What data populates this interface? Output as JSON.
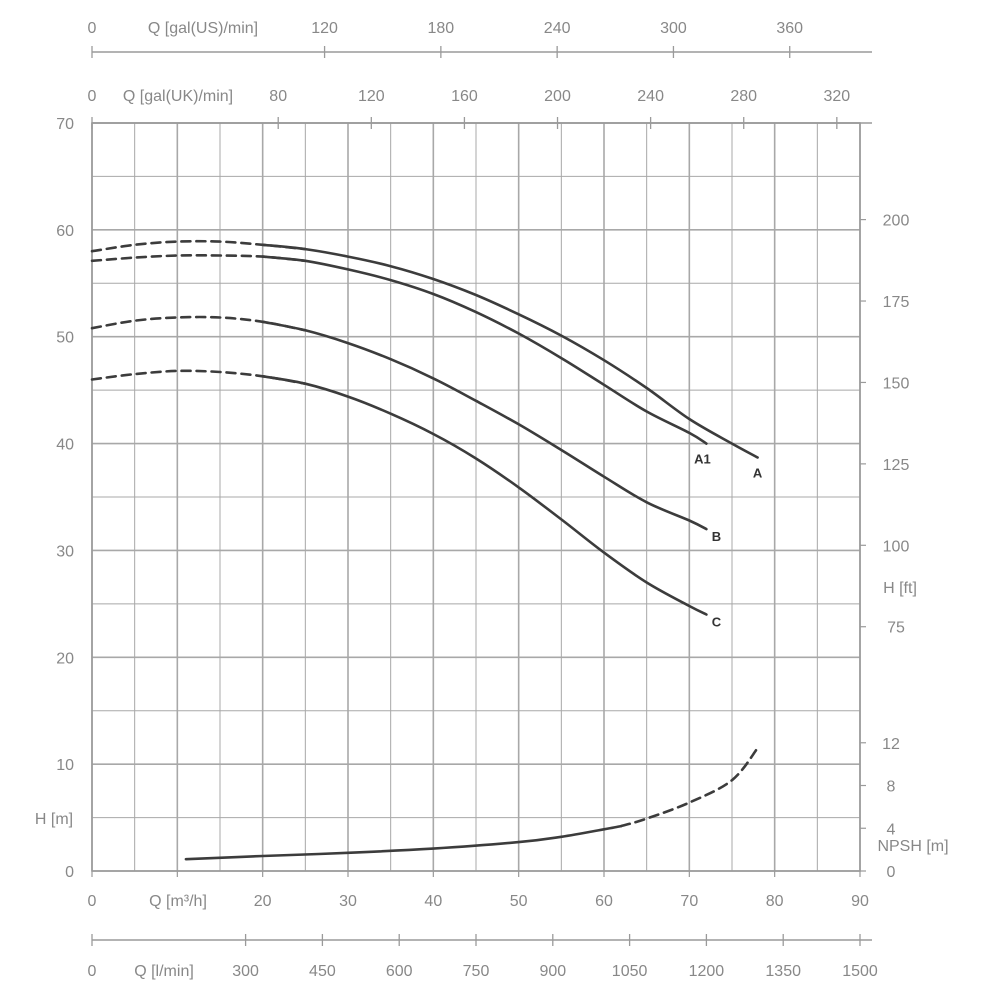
{
  "chart_data": {
    "type": "line",
    "title": "",
    "x_axis": {
      "label": "Q [m³/h]",
      "range": [
        0,
        90
      ],
      "ticks": [
        0,
        10,
        20,
        30,
        40,
        50,
        60,
        70,
        80,
        90
      ]
    },
    "y_axis_left": {
      "label": "H [m]",
      "range": [
        0,
        70
      ],
      "ticks": [
        0,
        10,
        20,
        30,
        40,
        50,
        60,
        70
      ]
    },
    "y_axis_right_head": {
      "label": "H [ft]",
      "ticks": [
        75,
        100,
        125,
        150,
        175,
        200
      ]
    },
    "y_axis_right_npsh": {
      "label": "NPSH [m]",
      "ticks": [
        0,
        4,
        8,
        12
      ]
    },
    "top_axis_us": {
      "label": "Q [gal(US)/min]",
      "ticks": [
        0,
        120,
        180,
        240,
        300,
        360
      ]
    },
    "top_axis_uk": {
      "label": "Q [gal(UK)/min]",
      "ticks": [
        0,
        80,
        120,
        160,
        200,
        240,
        280,
        320
      ]
    },
    "bottom_axis_lmin": {
      "label": "Q [l/min]",
      "ticks": [
        0,
        300,
        450,
        600,
        750,
        900,
        1050,
        1200,
        1350,
        1500
      ]
    },
    "grid": true,
    "series": [
      {
        "name": "A",
        "dashed_until_x": 24,
        "x": [
          0,
          5,
          10,
          15,
          20,
          25,
          30,
          35,
          40,
          45,
          50,
          55,
          60,
          65,
          70,
          75,
          78
        ],
        "y": [
          58.0,
          58.6,
          58.9,
          58.9,
          58.6,
          58.2,
          57.5,
          56.6,
          55.4,
          53.9,
          52.1,
          50.1,
          47.8,
          45.2,
          42.3,
          40.0,
          38.7
        ]
      },
      {
        "name": "A1",
        "dashed_until_x": 24,
        "x": [
          0,
          5,
          10,
          15,
          20,
          25,
          30,
          35,
          40,
          45,
          50,
          55,
          60,
          65,
          70,
          72
        ],
        "y": [
          57.1,
          57.4,
          57.6,
          57.6,
          57.5,
          57.1,
          56.3,
          55.3,
          54.0,
          52.3,
          50.3,
          48.0,
          45.5,
          43.0,
          41.0,
          40.0
        ]
      },
      {
        "name": "B",
        "dashed_until_x": 24,
        "x": [
          0,
          5,
          10,
          15,
          20,
          25,
          30,
          35,
          40,
          45,
          50,
          55,
          60,
          65,
          70,
          72
        ],
        "y": [
          50.8,
          51.5,
          51.8,
          51.8,
          51.4,
          50.6,
          49.4,
          47.9,
          46.1,
          44.0,
          41.8,
          39.4,
          36.9,
          34.5,
          32.8,
          32.0
        ]
      },
      {
        "name": "C",
        "dashed_until_x": 24,
        "x": [
          0,
          5,
          10,
          15,
          20,
          25,
          30,
          35,
          40,
          45,
          50,
          55,
          60,
          65,
          70,
          72
        ],
        "y": [
          46.0,
          46.5,
          46.8,
          46.7,
          46.3,
          45.6,
          44.4,
          42.8,
          40.9,
          38.6,
          35.9,
          32.9,
          29.8,
          27.0,
          24.8,
          24.0
        ]
      },
      {
        "name": "NPSH",
        "axis": "npsh",
        "dashed_from_x": 62,
        "x": [
          11,
          20,
          30,
          40,
          50,
          55,
          60,
          62,
          65,
          70,
          75,
          78
        ],
        "y": [
          1.1,
          1.4,
          1.7,
          2.1,
          2.7,
          3.2,
          3.9,
          4.2,
          4.9,
          6.4,
          8.5,
          11.5
        ]
      }
    ]
  }
}
